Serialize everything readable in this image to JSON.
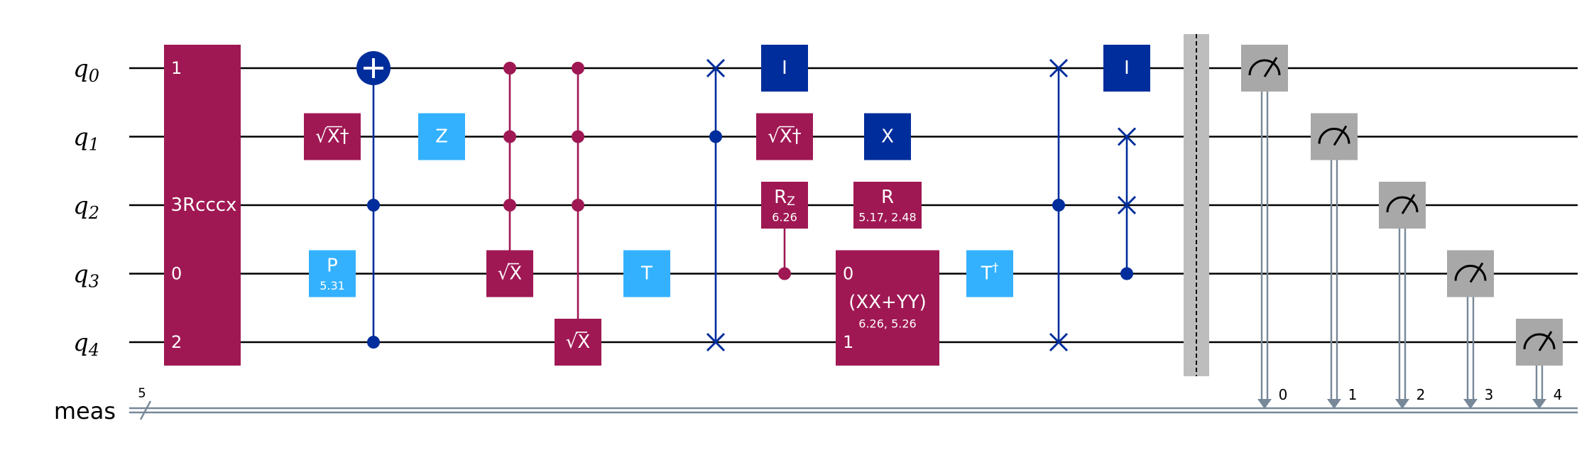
{
  "colors": {
    "wire": "#000000",
    "classical": "#778899",
    "multi": "#9f1853",
    "blue": "#002d9c",
    "light": "#33b1ff",
    "meter": "#a8a8a8",
    "barrier": "#bdbdbd",
    "gate_text": "#ffffff",
    "meter_icon": "#000000"
  },
  "qubits": [
    {
      "name": "q",
      "index": "0"
    },
    {
      "name": "q",
      "index": "1"
    },
    {
      "name": "q",
      "index": "2"
    },
    {
      "name": "q",
      "index": "3"
    },
    {
      "name": "q",
      "index": "4"
    }
  ],
  "creg": {
    "label": "meas",
    "size": "5"
  },
  "gates": [
    {
      "id": "rcccx",
      "label": "3Rcccx",
      "kind": "multi-box",
      "col": 0,
      "qubits": [
        0,
        4
      ],
      "pins": [
        {
          "q": 0,
          "text": "1"
        },
        {
          "q": 3,
          "text": "0"
        },
        {
          "q": 4,
          "text": "2"
        }
      ],
      "label_q": 2
    },
    {
      "id": "sxdg-1",
      "label": "√X†",
      "kind": "box",
      "color": "multi",
      "col": 1,
      "q": 1
    },
    {
      "id": "p-3",
      "label": "P",
      "param": "5.31",
      "kind": "box",
      "color": "light",
      "col": 1,
      "q": 3
    },
    {
      "id": "ccx",
      "kind": "cx",
      "col": 2,
      "target": 0,
      "controls": [
        2,
        4
      ]
    },
    {
      "id": "z-1",
      "label": "Z",
      "kind": "box",
      "color": "light",
      "col": 3,
      "q": 1
    },
    {
      "id": "c3sx-a",
      "label": "√X",
      "kind": "controlled-box",
      "color": "multi",
      "col": 4,
      "target": 3,
      "controls": [
        0,
        1,
        2
      ]
    },
    {
      "id": "c3sx-b",
      "label": "√X",
      "kind": "controlled-box",
      "color": "multi",
      "col": 5,
      "target": 4,
      "controls": [
        0,
        1,
        2
      ]
    },
    {
      "id": "t-3",
      "label": "T",
      "kind": "box",
      "color": "light",
      "col": 6,
      "q": 3
    },
    {
      "id": "cswap-1",
      "kind": "cswap",
      "col": 7,
      "control": 1,
      "targets": [
        0,
        4
      ]
    },
    {
      "id": "id-0a",
      "label": "I",
      "kind": "box",
      "color": "blue",
      "col": 8,
      "q": 0
    },
    {
      "id": "sxdg-1b",
      "label": "√X†",
      "kind": "box",
      "color": "multi",
      "col": 8,
      "q": 1
    },
    {
      "id": "crz",
      "label": "RZ",
      "param": "6.26",
      "kind": "controlled-box",
      "color": "multi",
      "col": 8,
      "target": 2,
      "controls": [
        3
      ]
    },
    {
      "id": "x-1",
      "label": "X",
      "kind": "box",
      "color": "blue",
      "col": 9,
      "q": 1
    },
    {
      "id": "r-2",
      "label": "R",
      "param": "5.17, 2.48",
      "kind": "box",
      "color": "multi",
      "col": 9,
      "q": 2
    },
    {
      "id": "xxyy",
      "label": "(XX+YY)",
      "param": "6.26, 5.26",
      "kind": "multi-box",
      "col": 9,
      "qubits": [
        3,
        4
      ],
      "pins": [
        {
          "q": 3,
          "text": "0"
        },
        {
          "q": 4,
          "text": "1"
        }
      ],
      "label_q": 3.5
    },
    {
      "id": "tdg-3",
      "label": "T†",
      "kind": "box",
      "color": "light",
      "col": 10,
      "q": 3
    },
    {
      "id": "cswap-2",
      "kind": "cswap",
      "col": 11,
      "control": 2,
      "targets": [
        0,
        4
      ]
    },
    {
      "id": "id-0b",
      "label": "I",
      "kind": "box",
      "color": "blue",
      "col": 12,
      "q": 0
    },
    {
      "id": "cswap-3",
      "kind": "cswap",
      "col": 12,
      "control": 3,
      "targets": [
        1,
        2
      ]
    }
  ],
  "barrier": {
    "qubits": [
      0,
      4
    ]
  },
  "measurements": [
    {
      "q": 0,
      "bit": "0"
    },
    {
      "q": 1,
      "bit": "1"
    },
    {
      "q": 2,
      "bit": "2"
    },
    {
      "q": 3,
      "bit": "3"
    },
    {
      "q": 4,
      "bit": "4"
    }
  ]
}
